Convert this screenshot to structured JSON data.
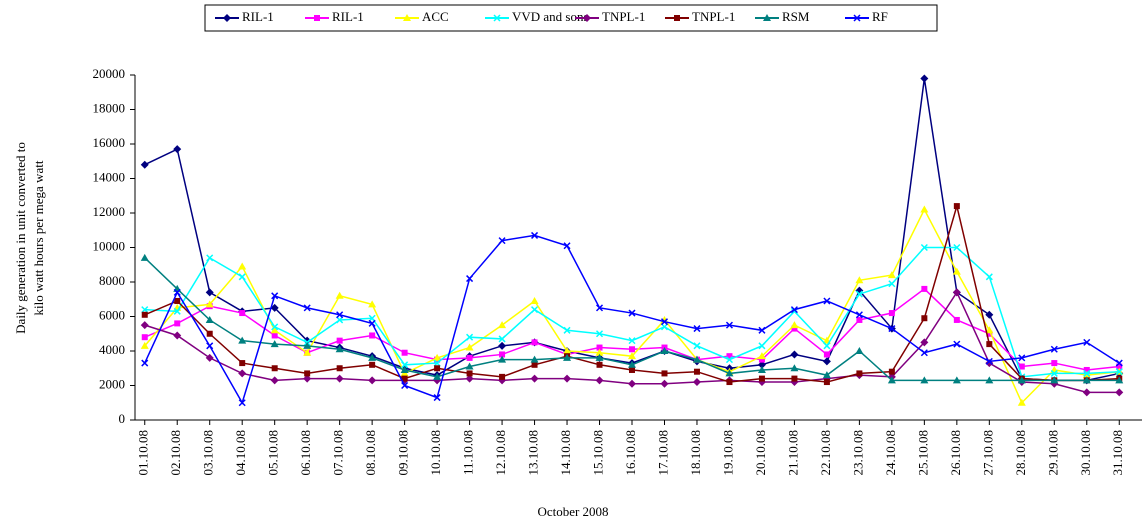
{
  "chart_data": {
    "type": "line",
    "x_label": "October 2008",
    "y_label": [
      "Daily generation in unit converted to",
      "kilo watt hours  per mega watt"
    ],
    "categories": [
      "01.10.08",
      "02.10.08",
      "03.10.08",
      "04.10.08",
      "05.10.08",
      "06.10.08",
      "07.10.08",
      "08.10.08",
      "09.10.08",
      "10.10.08",
      "11.10.08",
      "12.10.08",
      "13.10.08",
      "14.10.08",
      "15.10.08",
      "16.10.08",
      "17.10.08",
      "18.10.08",
      "19.10.08",
      "20.10.08",
      "21.10.08",
      "22.10.08",
      "23.10.08",
      "24.10.08",
      "25.10.08",
      "26.10.08",
      "27.10.08",
      "28.10.08",
      "29.10.08",
      "30.10.08",
      "31.10.08"
    ],
    "ylim": [
      0,
      20000
    ],
    "yticks": [
      0,
      2000,
      4000,
      6000,
      8000,
      10000,
      12000,
      14000,
      16000,
      18000,
      20000
    ],
    "legend": "top",
    "series": [
      {
        "name": "RIL-1",
        "color": "#000080",
        "values": [
          14800,
          15700,
          7400,
          6300,
          6500,
          4600,
          4200,
          3700,
          3000,
          2600,
          3700,
          4300,
          4500,
          4000,
          3600,
          3300,
          4000,
          3400,
          3000,
          3200,
          3800,
          3400,
          7500,
          5300,
          19800,
          7400,
          6100,
          2400,
          2300,
          2300,
          2700
        ]
      },
      {
        "name": "RIL-1",
        "color": "#ff00ff",
        "values": [
          4800,
          5600,
          6600,
          6200,
          4900,
          3900,
          4600,
          4900,
          3900,
          3500,
          3600,
          3800,
          4500,
          3800,
          4200,
          4100,
          4200,
          3500,
          3700,
          3500,
          5300,
          3800,
          5800,
          6200,
          7600,
          5800,
          5000,
          3100,
          3300,
          2900,
          3100
        ]
      },
      {
        "name": "ACC",
        "color": "#ffff00",
        "values": [
          4300,
          6500,
          6700,
          8900,
          5200,
          3900,
          7200,
          6700,
          2700,
          3600,
          4200,
          5500,
          6900,
          4000,
          3900,
          3700,
          5800,
          3500,
          2800,
          3700,
          5500,
          4600,
          8100,
          8400,
          12200,
          8600,
          5200,
          1000,
          2900,
          2600,
          2800
        ]
      },
      {
        "name": "VVD and sons",
        "color": "#00ffff",
        "values": [
          6400,
          6300,
          9400,
          8300,
          5400,
          4500,
          5800,
          5900,
          3200,
          3300,
          4800,
          4700,
          6400,
          5200,
          5000,
          4600,
          5400,
          4300,
          3500,
          4300,
          6300,
          4300,
          7300,
          7900,
          10000,
          10000,
          8300,
          2500,
          2700,
          2700,
          2800
        ]
      },
      {
        "name": "TNPL-1",
        "color": "#800080",
        "values": [
          5500,
          4900,
          3600,
          2700,
          2300,
          2400,
          2400,
          2300,
          2300,
          2300,
          2400,
          2300,
          2400,
          2400,
          2300,
          2100,
          2100,
          2200,
          2300,
          2200,
          2200,
          2400,
          2600,
          2500,
          4500,
          7400,
          3300,
          2200,
          2100,
          1600,
          1600
        ]
      },
      {
        "name": "TNPL-1",
        "color": "#800000",
        "values": [
          6100,
          6900,
          5000,
          3300,
          3000,
          2700,
          3000,
          3200,
          2400,
          3000,
          2700,
          2500,
          3200,
          3700,
          3200,
          2900,
          2700,
          2800,
          2200,
          2400,
          2400,
          2200,
          2700,
          2800,
          5900,
          12400,
          4400,
          2400,
          2300,
          2300,
          2400
        ]
      },
      {
        "name": "RSM",
        "color": "#008080",
        "values": [
          9400,
          7600,
          5800,
          4600,
          4400,
          4300,
          4100,
          3600,
          2900,
          2500,
          3100,
          3500,
          3500,
          3600,
          3600,
          3200,
          4000,
          3500,
          2700,
          2900,
          3000,
          2600,
          4000,
          2300,
          2300,
          2300,
          2300,
          2300,
          2300,
          2300,
          2300
        ]
      },
      {
        "name": "RF",
        "color": "#0000ff",
        "values": [
          3300,
          7400,
          4300,
          1000,
          7200,
          6500,
          6100,
          5600,
          2000,
          1300,
          8200,
          10400,
          10700,
          10100,
          6500,
          6200,
          5700,
          5300,
          5500,
          5200,
          6400,
          6900,
          6100,
          5300,
          3900,
          4400,
          3400,
          3600,
          4100,
          4500,
          3300
        ]
      }
    ]
  }
}
